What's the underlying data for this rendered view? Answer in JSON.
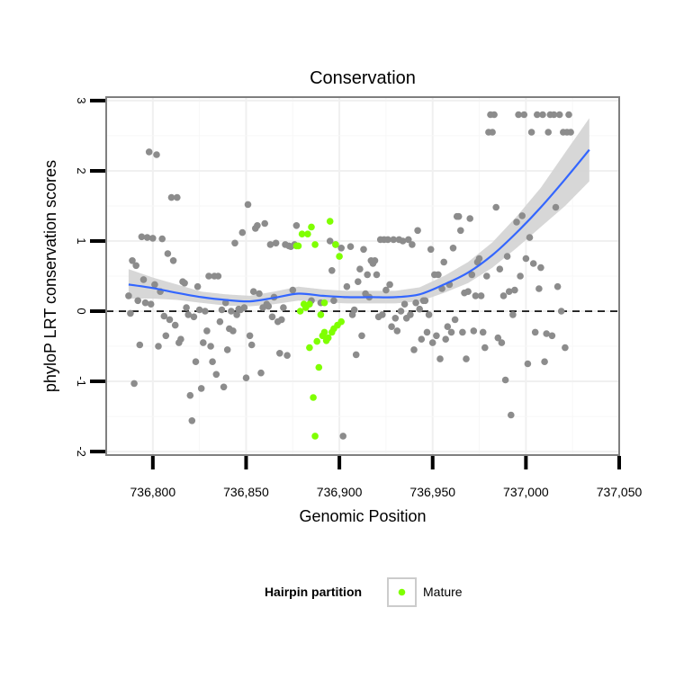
{
  "chart_data": {
    "type": "scatter",
    "title": "Conservation",
    "xlabel": "Genomic Position",
    "ylabel": "phyloP LRT conservation scores",
    "xlim": [
      736775,
      737050
    ],
    "ylim": [
      -2.05,
      3.05
    ],
    "x_ticks": [
      736800,
      736850,
      736900,
      736950,
      737000,
      737050
    ],
    "x_tick_labels": [
      "736,800",
      "736,850",
      "736,900",
      "736,950",
      "737,000",
      "737,050"
    ],
    "y_ticks": [
      -2,
      -1,
      0,
      1,
      2,
      3
    ],
    "y_tick_labels": [
      "-2",
      "-1",
      "0",
      "1",
      "2",
      "3"
    ],
    "reference_line": {
      "y": 0,
      "style": "dashed"
    },
    "legend": {
      "title": "Hairpin partition",
      "position": "bottom",
      "entries": [
        {
          "label": "Mature",
          "color": "#7fff00"
        }
      ]
    },
    "colors": {
      "other": "#8c8c8c",
      "mature": "#7fff00",
      "smooth": "#3366ff",
      "band": "#d3d3d3"
    },
    "series": [
      {
        "name": "Other",
        "color": "#8c8c8c",
        "points": [
          [
            736787,
            0.22
          ],
          [
            736788,
            -0.03
          ],
          [
            736789,
            0.72
          ],
          [
            736790,
            -1.03
          ],
          [
            736791,
            0.65
          ],
          [
            736792,
            0.15
          ],
          [
            736793,
            -0.48
          ],
          [
            736794,
            1.06
          ],
          [
            736795,
            0.45
          ],
          [
            736796,
            0.12
          ],
          [
            736797,
            1.05
          ],
          [
            736798,
            2.27
          ],
          [
            736799,
            0.1
          ],
          [
            736800,
            1.04
          ],
          [
            736801,
            0.38
          ],
          [
            736802,
            2.23
          ],
          [
            736803,
            -0.5
          ],
          [
            736804,
            0.28
          ],
          [
            736805,
            1.03
          ],
          [
            736806,
            -0.07
          ],
          [
            736807,
            -0.35
          ],
          [
            736808,
            0.82
          ],
          [
            736809,
            -0.12
          ],
          [
            736810,
            1.62
          ],
          [
            736811,
            0.72
          ],
          [
            736812,
            -0.2
          ],
          [
            736813,
            1.62
          ],
          [
            736814,
            -0.45
          ],
          [
            736815,
            -0.4
          ],
          [
            736816,
            0.42
          ],
          [
            736817,
            0.4
          ],
          [
            736818,
            0.05
          ],
          [
            736819,
            -0.05
          ],
          [
            736820,
            -1.2
          ],
          [
            736821,
            -1.56
          ],
          [
            736822,
            -0.08
          ],
          [
            736823,
            -0.72
          ],
          [
            736824,
            0.35
          ],
          [
            736825,
            0.02
          ],
          [
            736826,
            -1.1
          ],
          [
            736827,
            -0.45
          ],
          [
            736828,
            0.0
          ],
          [
            736829,
            -0.28
          ],
          [
            736830,
            0.5
          ],
          [
            736831,
            -0.5
          ],
          [
            736832,
            -0.72
          ],
          [
            736833,
            0.5
          ],
          [
            736834,
            -0.9
          ],
          [
            736835,
            0.5
          ],
          [
            736836,
            -0.15
          ],
          [
            736837,
            0.02
          ],
          [
            736838,
            -1.08
          ],
          [
            736839,
            0.12
          ],
          [
            736840,
            -0.55
          ],
          [
            736841,
            -0.25
          ],
          [
            736842,
            0.0
          ],
          [
            736843,
            -0.28
          ],
          [
            736844,
            0.97
          ],
          [
            736845,
            -0.05
          ],
          [
            736846,
            0.03
          ],
          [
            736847,
            0.02
          ],
          [
            736848,
            1.12
          ],
          [
            736849,
            0.05
          ],
          [
            736850,
            -0.95
          ],
          [
            736851,
            1.52
          ],
          [
            736852,
            -0.35
          ],
          [
            736853,
            -0.48
          ],
          [
            736854,
            0.28
          ],
          [
            736855,
            1.18
          ],
          [
            736856,
            1.22
          ],
          [
            736857,
            0.25
          ],
          [
            736858,
            -0.88
          ],
          [
            736859,
            0.05
          ],
          [
            736860,
            1.25
          ],
          [
            736861,
            0.1
          ],
          [
            736862,
            0.07
          ],
          [
            736863,
            0.95
          ],
          [
            736864,
            -0.08
          ],
          [
            736865,
            0.2
          ],
          [
            736866,
            0.97
          ],
          [
            736867,
            -0.15
          ],
          [
            736868,
            -0.6
          ],
          [
            736869,
            -0.12
          ],
          [
            736870,
            0.05
          ],
          [
            736871,
            0.95
          ],
          [
            736872,
            -0.63
          ],
          [
            736873,
            0.93
          ],
          [
            736874,
            0.92
          ],
          [
            736875,
            0.3
          ],
          [
            736876,
            0.95
          ],
          [
            736877,
            1.22
          ],
          [
            736885,
            0.15
          ],
          [
            736890,
            0.12
          ],
          [
            736895,
            1.0
          ],
          [
            736896,
            0.58
          ],
          [
            736897,
            0.15
          ],
          [
            736898,
            0.95
          ],
          [
            736901,
            0.9
          ],
          [
            736902,
            -1.78
          ],
          [
            736904,
            0.35
          ],
          [
            736906,
            0.92
          ],
          [
            736907,
            -0.05
          ],
          [
            736908,
            0.02
          ],
          [
            736909,
            -0.62
          ],
          [
            736910,
            0.42
          ],
          [
            736911,
            0.6
          ],
          [
            736912,
            -0.35
          ],
          [
            736913,
            0.88
          ],
          [
            736914,
            0.25
          ],
          [
            736915,
            0.52
          ],
          [
            736916,
            0.2
          ],
          [
            736917,
            0.72
          ],
          [
            736918,
            0.68
          ],
          [
            736919,
            0.72
          ],
          [
            736920,
            0.52
          ],
          [
            736921,
            -0.08
          ],
          [
            736922,
            1.02
          ],
          [
            736923,
            -0.05
          ],
          [
            736924,
            1.02
          ],
          [
            736925,
            0.3
          ],
          [
            736926,
            1.02
          ],
          [
            736927,
            0.38
          ],
          [
            736928,
            -0.22
          ],
          [
            736929,
            1.02
          ],
          [
            736930,
            -0.1
          ],
          [
            736931,
            -0.28
          ],
          [
            736932,
            1.02
          ],
          [
            736933,
            0.0
          ],
          [
            736934,
            1.0
          ],
          [
            736935,
            0.1
          ],
          [
            736936,
            -0.1
          ],
          [
            736937,
            1.02
          ],
          [
            736938,
            -0.05
          ],
          [
            736939,
            0.95
          ],
          [
            736940,
            -0.55
          ],
          [
            736941,
            0.12
          ],
          [
            736942,
            1.15
          ],
          [
            736943,
            0.03
          ],
          [
            736944,
            -0.4
          ],
          [
            736945,
            0.15
          ],
          [
            736946,
            0.15
          ],
          [
            736947,
            -0.3
          ],
          [
            736948,
            -0.05
          ],
          [
            736949,
            0.88
          ],
          [
            736950,
            -0.45
          ],
          [
            736951,
            0.52
          ],
          [
            736952,
            -0.35
          ],
          [
            736953,
            0.52
          ],
          [
            736954,
            -0.68
          ],
          [
            736955,
            0.32
          ],
          [
            736956,
            0.7
          ],
          [
            736957,
            -0.4
          ],
          [
            736958,
            -0.22
          ],
          [
            736959,
            0.38
          ],
          [
            736960,
            -0.3
          ],
          [
            736961,
            0.9
          ],
          [
            736962,
            -0.12
          ],
          [
            736963,
            1.35
          ],
          [
            736964,
            1.35
          ],
          [
            736965,
            1.15
          ],
          [
            736966,
            -0.3
          ],
          [
            736967,
            0.26
          ],
          [
            736968,
            -0.68
          ],
          [
            736969,
            0.28
          ],
          [
            736970,
            1.32
          ],
          [
            736971,
            0.52
          ],
          [
            736972,
            -0.28
          ],
          [
            736973,
            0.22
          ],
          [
            736974,
            0.7
          ],
          [
            736975,
            0.75
          ],
          [
            736976,
            0.22
          ],
          [
            736977,
            -0.3
          ],
          [
            736978,
            -0.52
          ],
          [
            736979,
            0.5
          ],
          [
            736980,
            2.55
          ],
          [
            736981,
            2.8
          ],
          [
            736982,
            2.55
          ],
          [
            736983,
            2.8
          ],
          [
            736984,
            1.48
          ],
          [
            736985,
            -0.38
          ],
          [
            736986,
            0.6
          ],
          [
            736987,
            -0.45
          ],
          [
            736988,
            0.22
          ],
          [
            736989,
            -0.98
          ],
          [
            736990,
            0.78
          ],
          [
            736991,
            0.28
          ],
          [
            736992,
            -1.48
          ],
          [
            736993,
            -0.05
          ],
          [
            736994,
            0.3
          ],
          [
            736995,
            1.27
          ],
          [
            736996,
            2.8
          ],
          [
            736997,
            0.5
          ],
          [
            736998,
            1.36
          ],
          [
            736999,
            2.8
          ],
          [
            737000,
            0.75
          ],
          [
            737001,
            -0.75
          ],
          [
            737002,
            1.05
          ],
          [
            737003,
            2.55
          ],
          [
            737004,
            0.68
          ],
          [
            737005,
            -0.3
          ],
          [
            737006,
            2.8
          ],
          [
            737007,
            0.32
          ],
          [
            737008,
            0.62
          ],
          [
            737009,
            2.8
          ],
          [
            737010,
            -0.72
          ],
          [
            737011,
            -0.32
          ],
          [
            737012,
            2.55
          ],
          [
            737013,
            2.8
          ],
          [
            737014,
            -0.35
          ],
          [
            737015,
            2.8
          ],
          [
            737016,
            1.48
          ],
          [
            737017,
            0.35
          ],
          [
            737018,
            2.8
          ],
          [
            737019,
            0.0
          ],
          [
            737020,
            2.55
          ],
          [
            737021,
            -0.52
          ],
          [
            737022,
            2.55
          ],
          [
            737023,
            2.8
          ],
          [
            737024,
            2.55
          ]
        ]
      },
      {
        "name": "Mature",
        "color": "#7fff00",
        "points": [
          [
            736877,
            0.93
          ],
          [
            736878,
            0.93
          ],
          [
            736879,
            0.0
          ],
          [
            736880,
            1.1
          ],
          [
            736881,
            0.1
          ],
          [
            736882,
            0.05
          ],
          [
            736883,
            1.1
          ],
          [
            736884,
            -0.52
          ],
          [
            736885,
            1.2
          ],
          [
            736886,
            -1.23
          ],
          [
            736887,
            0.95
          ],
          [
            736888,
            -0.43
          ],
          [
            736889,
            -0.8
          ],
          [
            736890,
            -0.05
          ],
          [
            736891,
            -0.35
          ],
          [
            736892,
            -0.3
          ],
          [
            736893,
            -0.42
          ],
          [
            736894,
            -0.38
          ],
          [
            736895,
            1.28
          ],
          [
            736896,
            -0.3
          ],
          [
            736897,
            -0.25
          ],
          [
            736898,
            0.95
          ],
          [
            736899,
            -0.2
          ],
          [
            736900,
            0.78
          ],
          [
            736901,
            -0.15
          ],
          [
            736887,
            -1.78
          ],
          [
            736884,
            0.1
          ],
          [
            736892,
            0.12
          ]
        ]
      }
    ],
    "smooth": {
      "x": [
        736787,
        736800,
        736813,
        736826,
        736839,
        736852,
        736865,
        736878,
        736891,
        736904,
        736917,
        736930,
        736943,
        736956,
        736969,
        736982,
        736995,
        737008,
        737021,
        737034
      ],
      "y": [
        0.38,
        0.33,
        0.26,
        0.2,
        0.16,
        0.14,
        0.19,
        0.25,
        0.22,
        0.2,
        0.2,
        0.2,
        0.24,
        0.38,
        0.55,
        0.8,
        1.12,
        1.48,
        1.88,
        2.3
      ],
      "band_lower": [
        0.18,
        0.18,
        0.16,
        0.12,
        0.08,
        0.07,
        0.1,
        0.15,
        0.13,
        0.11,
        0.11,
        0.11,
        0.14,
        0.26,
        0.4,
        0.62,
        0.9,
        1.2,
        1.5,
        1.85
      ],
      "band_upper": [
        0.6,
        0.48,
        0.38,
        0.28,
        0.24,
        0.22,
        0.28,
        0.35,
        0.31,
        0.29,
        0.29,
        0.29,
        0.34,
        0.5,
        0.7,
        0.98,
        1.35,
        1.76,
        2.26,
        2.75
      ]
    }
  }
}
